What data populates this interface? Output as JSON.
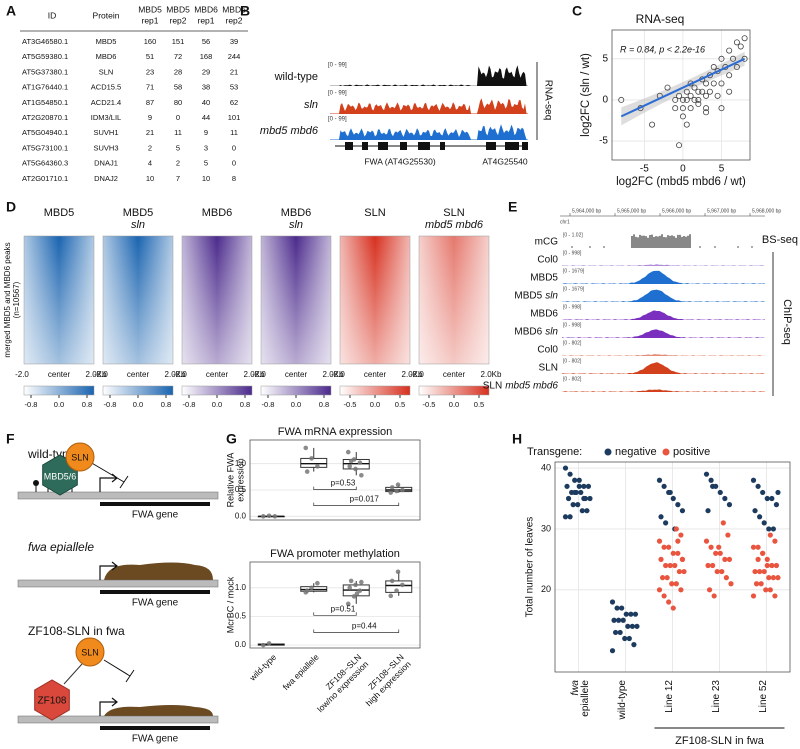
{
  "figure": {
    "panel_labels": [
      "A",
      "B",
      "C",
      "D",
      "E",
      "F",
      "G",
      "H"
    ],
    "table": {
      "header": [
        [
          "ID"
        ],
        [
          "Protein"
        ],
        [
          "MBD5",
          "rep1"
        ],
        [
          "MBD5",
          "rep2"
        ],
        [
          "MBD6",
          "rep1"
        ],
        [
          "MBD6",
          "rep2"
        ]
      ],
      "rows": [
        [
          "AT3G46580.1",
          "MBD5",
          160,
          151,
          56,
          39
        ],
        [
          "AT5G59380.1",
          "MBD6",
          51,
          72,
          168,
          244
        ],
        [
          "AT5G37380.1",
          "SLN",
          23,
          28,
          29,
          21
        ],
        [
          "AT1G76440.1",
          "ACD15.5",
          71,
          58,
          38,
          53
        ],
        [
          "AT1G54850.1",
          "ACD21.4",
          87,
          80,
          40,
          62
        ],
        [
          "AT2G20870.1",
          "IDM3/LIL",
          9,
          0,
          44,
          101
        ],
        [
          "AT5G04940.1",
          "SUVH1",
          21,
          11,
          9,
          11
        ],
        [
          "AT5G73100.1",
          "SUVH3",
          2,
          5,
          3,
          0
        ],
        [
          "AT5G64360.3",
          "DNAJ1",
          4,
          2,
          5,
          0
        ],
        [
          "AT2G01710.1",
          "DNAJ2",
          10,
          7,
          10,
          8
        ]
      ]
    },
    "panel_b": {
      "tracks": [
        {
          "name": "wild-type",
          "scale": "[0 - 99]",
          "color": "#111111"
        },
        {
          "name": "sln",
          "scale": "[0 - 99]",
          "color": "#d2401c"
        },
        {
          "name": "mbd5 mbd6",
          "scale": "[0 - 99]",
          "color": "#1f6fd1"
        }
      ],
      "assay": "RNA-seq",
      "genes": [
        "FWA (AT4G25530)",
        "AT4G25540"
      ]
    },
    "panel_c": {
      "type": "scatter",
      "title": "RNA-seq",
      "annotation": "R = 0.84, p < 2.2e-16",
      "x_label": "log2FC (mbd5 mbd6 / wt)",
      "y_label": "log2FC (sln / wt)",
      "x": [
        -8,
        -5.5,
        -4,
        -3,
        -2,
        -1,
        -1,
        -0.5,
        0,
        0,
        0,
        0.5,
        0.5,
        1,
        1,
        1,
        1.5,
        1.5,
        2,
        2,
        2,
        2.5,
        2.5,
        3,
        3,
        3,
        3.5,
        3.5,
        4,
        4,
        4.5,
        4.5,
        5,
        5,
        5,
        5.5,
        6,
        6,
        6.5,
        7,
        7,
        7.5,
        8,
        8,
        -0.5,
        0.5,
        3,
        6
      ],
      "y": [
        0,
        -1,
        -3,
        0.5,
        1.5,
        -1,
        0,
        0.5,
        0,
        -1,
        -2,
        1,
        0,
        -1,
        2,
        0.5,
        0,
        1.5,
        1,
        0,
        -0.5,
        2.5,
        1,
        0.5,
        -1,
        2,
        3,
        1,
        2,
        4,
        3.5,
        0.5,
        2,
        5,
        -1,
        4,
        3,
        6,
        5,
        7,
        4,
        6.5,
        7.5,
        5,
        -5.5,
        -3,
        -1.5,
        1
      ],
      "fit": {
        "x": [
          -8,
          8
        ],
        "y": [
          -2,
          5
        ],
        "color": "#2b6cd4"
      },
      "xlim": [
        -9.2,
        8.7
      ],
      "ylim": [
        -7.3,
        8.5
      ],
      "xticks": [
        -5,
        0,
        5
      ],
      "yticks": [
        -5,
        0,
        5
      ],
      "grid": true
    },
    "panel_d": {
      "y_label": [
        "merged MBD5 and MBD6 peaks",
        "(n=10567)"
      ],
      "x_ticks": [
        "-2.0",
        "center",
        "2.0Kb"
      ],
      "heatmaps": [
        {
          "title": [
            "MBD5"
          ],
          "color": "#1a64b0",
          "clim": [
            -1,
            1
          ],
          "ticks": [
            -0.8,
            {
              "value": 0,
              "label": "0.0"
            },
            0.8
          ]
        },
        {
          "title": [
            "MBD5",
            "sln"
          ],
          "color": "#1a64b0",
          "clim": [
            -1,
            1
          ],
          "ticks": [
            -0.8,
            {
              "value": 0,
              "label": "0.0"
            },
            0.8
          ]
        },
        {
          "title": [
            "MBD6"
          ],
          "color": "#4b2a8c",
          "clim": [
            -1,
            1
          ],
          "ticks": [
            -0.8,
            {
              "value": 0,
              "label": "0.0"
            },
            0.8
          ]
        },
        {
          "title": [
            "MBD6",
            "sln"
          ],
          "color": "#4b2a8c",
          "clim": [
            -1,
            1
          ],
          "ticks": [
            -0.8,
            {
              "value": 0,
              "label": "0.0"
            },
            0.8
          ]
        },
        {
          "title": [
            "SLN"
          ],
          "color": "#d7301f",
          "clim": [
            -0.7,
            0.7
          ],
          "ticks": [
            -0.5,
            {
              "value": 0,
              "label": "0.0"
            },
            0.5
          ]
        },
        {
          "title": [
            "SLN",
            "mbd5 mbd6"
          ],
          "color": "#d7301f",
          "clim": [
            -0.7,
            0.7
          ],
          "ticks": [
            -0.5,
            {
              "value": 0,
              "label": "0.0"
            },
            0.5
          ]
        }
      ]
    },
    "panel_e": {
      "chrom": "chr1",
      "coords": [
        "5,964,000 bp",
        "5,965,000 bp",
        "5,966,000 bp",
        "5,967,000 bp",
        "5,968,000 bp"
      ],
      "assays": [
        "BS-seq",
        "ChIP-seq"
      ],
      "tracks": [
        {
          "label": "mCG",
          "scale": "[0 - 1.02]",
          "color": "#111111"
        },
        {
          "label": "Col0",
          "scale": "[0 - 998]",
          "color": "#7a3fbf"
        },
        {
          "label": "MBD5",
          "scale": "[0 - 1679]",
          "color": "#1f6fd1"
        },
        {
          "label": "MBD5",
          "genotype": "sln",
          "scale": "[0 - 1679]",
          "color": "#1f6fd1"
        },
        {
          "label": "MBD6",
          "scale": "[0 - 998]",
          "color": "#7a2fbe"
        },
        {
          "label": "MBD6",
          "genotype": "sln",
          "scale": "[0 - 998]",
          "color": "#7a2fbe"
        },
        {
          "label": "Col0",
          "scale": "[0 - 802]",
          "color": "#d2401c"
        },
        {
          "label": "SLN",
          "scale": "[0 - 802]",
          "color": "#d2401c"
        },
        {
          "label": "SLN",
          "genotype": "mbd5 mbd6",
          "scale": "[0 - 802]",
          "color": "#d2401c"
        }
      ]
    },
    "panel_f": {
      "diagrams": [
        {
          "title": "wild-type",
          "labels": [
            "SLN",
            "MBD5/6"
          ],
          "gene": "FWA gene"
        },
        {
          "title": "fwa epiallele",
          "gene": "FWA gene"
        },
        {
          "title": "ZF108-SLN in fwa",
          "labels": [
            "SLN",
            "ZF108"
          ],
          "gene": "FWA gene"
        }
      ]
    },
    "panel_g": {
      "type": "box",
      "categories": [
        [
          "wild-type"
        ],
        [
          "fwa epiallele"
        ],
        [
          "ZF108−SLN",
          "low/no expression"
        ],
        [
          "ZF108−SLN",
          "high expression"
        ]
      ],
      "plots": [
        {
          "title": "FWA mRNA expression",
          "y_label": [
            "Relative FWA",
            "expression"
          ],
          "ylim": [
            -0.07,
            1.45
          ],
          "yticks": [
            {
              "value": 0,
              "label": "0.0"
            },
            0.5,
            {
              "value": 1,
              "label": "1.0"
            }
          ],
          "boxes": [
            {
              "low": 0,
              "q1": 0,
              "median": 0,
              "q3": 0,
              "high": 0.01
            },
            {
              "low": 0.85,
              "q1": 0.93,
              "median": 1.0,
              "q3": 1.1,
              "high": 1.3
            },
            {
              "low": 0.78,
              "q1": 0.9,
              "median": 1.0,
              "q3": 1.08,
              "high": 1.22
            },
            {
              "low": 0.45,
              "q1": 0.47,
              "median": 0.5,
              "q3": 0.55,
              "high": 0.6
            }
          ],
          "points": [
            [
              0,
              0.01,
              0
            ],
            [
              1.3,
              1.1,
              0.95,
              0.85
            ],
            [
              1.22,
              1.08,
              1.02,
              0.95,
              0.9,
              0.78,
              1.05
            ],
            [
              0.45,
              0.48,
              0.5,
              0.55,
              0.6
            ]
          ],
          "comparisons": [
            "p=0.017",
            "p=0.53"
          ]
        },
        {
          "title": "FWA promoter methylation",
          "y_label": [
            "McrBC / mock"
          ],
          "ylim": [
            -0.05,
            1.45
          ],
          "yticks": [
            {
              "value": 0,
              "label": "0.0"
            },
            0.5,
            {
              "value": 1,
              "label": "1.0"
            }
          ],
          "boxes": [
            {
              "low": 0,
              "q1": 0,
              "median": 0.01,
              "q3": 0.02,
              "high": 0.03
            },
            {
              "low": 0.92,
              "q1": 0.94,
              "median": 0.97,
              "q3": 1.02,
              "high": 1.08
            },
            {
              "low": 0.72,
              "q1": 0.86,
              "median": 0.96,
              "q3": 1.05,
              "high": 1.12
            },
            {
              "low": 0.86,
              "q1": 0.92,
              "median": 1.04,
              "q3": 1.12,
              "high": 1.28
            }
          ],
          "points": [
            [
              0,
              0.03
            ],
            [
              0.92,
              1.0,
              1.08,
              0.95
            ],
            [
              0.72,
              0.85,
              0.95,
              1.0,
              1.05,
              1.1,
              1.12,
              0.9
            ],
            [
              0.86,
              0.95,
              1.05,
              1.12,
              1.28
            ]
          ],
          "comparisons": [
            "p=0.44",
            "p=0.51"
          ]
        }
      ]
    },
    "panel_h": {
      "type": "strip",
      "legend_title": "Transgene:",
      "y_label": "Total number of leaves",
      "categories": [
        [
          "fwa",
          "epiallele"
        ],
        [
          "wild-type"
        ],
        [
          "Line 12"
        ],
        [
          "Line 23"
        ],
        [
          "Line 52"
        ]
      ],
      "group_label": "ZF108-SLN in fwa",
      "ylim": [
        6.5,
        41
      ],
      "yticks": [
        20,
        30,
        40
      ],
      "grid": true,
      "series": [
        {
          "name": "negative",
          "color": "#1d3b5e",
          "values": [
            [
              40,
              39,
              38,
              38,
              37,
              37,
              37,
              36,
              36,
              36,
              35,
              35,
              35,
              34,
              34,
              33,
              33,
              32,
              32,
              36,
              37,
              35
            ],
            [
              18,
              17,
              17,
              16,
              16,
              16,
              15,
              15,
              15,
              14,
              14,
              14,
              13,
              13,
              12,
              12,
              11,
              10
            ],
            [
              38,
              37,
              36,
              35,
              34,
              33,
              32,
              31,
              36,
              30
            ],
            [
              39,
              38,
              37,
              36,
              35,
              34,
              33,
              37
            ],
            [
              38,
              37,
              36,
              35,
              35,
              34,
              33,
              32,
              31,
              30,
              30,
              36
            ]
          ]
        },
        {
          "name": "positive",
          "color": "#e9553f",
          "values": [
            [],
            [],
            [
              30,
              29,
              28,
              27,
              27,
              26,
              26,
              25,
              25,
              24,
              24,
              24,
              23,
              23,
              22,
              22,
              21,
              21,
              20,
              20,
              19,
              18,
              17,
              28,
              25
            ],
            [
              31,
              29,
              28,
              27,
              26,
              26,
              25,
              25,
              24,
              24,
              23,
              23,
              22,
              21,
              20,
              19,
              27
            ],
            [
              29,
              28,
              27,
              27,
              26,
              25,
              24,
              24,
              23,
              23,
              23,
              22,
              22,
              22,
              21,
              21,
              20,
              20,
              19,
              19,
              25,
              26,
              24
            ]
          ]
        }
      ]
    }
  }
}
